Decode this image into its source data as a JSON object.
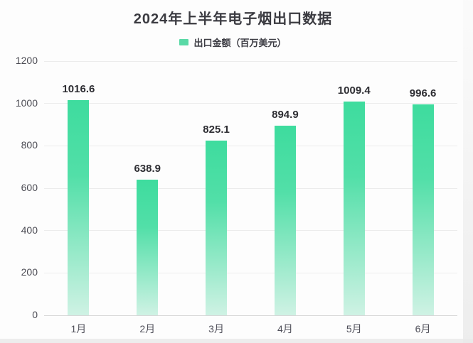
{
  "page": {
    "background": "#fdfdfd"
  },
  "chart": {
    "title": "2024年上半年电子烟出口数据",
    "legend": {
      "label": "出口金额（百万美元）",
      "swatch_color": "#5ad9a6"
    },
    "colors": {
      "bar_gradient_top": "#3edc9e",
      "bar_gradient_bottom": "#cff2e4",
      "gridline": "#ececec",
      "axis_line": "#d7d7d7",
      "title_text": "#3b3b41",
      "tick_text": "#4c4c54",
      "value_label_text": "#2e2e33"
    }
  },
  "chart_data": {
    "type": "bar",
    "title": "2024年上半年电子烟出口数据",
    "legend": [
      "出口金额（百万美元）"
    ],
    "legend_position": "top",
    "categories": [
      "1月",
      "2月",
      "3月",
      "4月",
      "5月",
      "6月"
    ],
    "series": [
      {
        "name": "出口金额（百万美元）",
        "values": [
          1016.6,
          638.9,
          825.1,
          894.9,
          1009.4,
          996.6
        ]
      }
    ],
    "value_labels": [
      "1016.6",
      "638.9",
      "825.1",
      "894.9",
      "1009.4",
      "996.6"
    ],
    "xlabel": "",
    "ylabel": "",
    "ylim": [
      0,
      1200
    ],
    "yticks": [
      0,
      200,
      400,
      600,
      800,
      1000,
      1200
    ],
    "grid": true,
    "bar_gradient": [
      "#3edc9e",
      "#cff2e4"
    ]
  }
}
